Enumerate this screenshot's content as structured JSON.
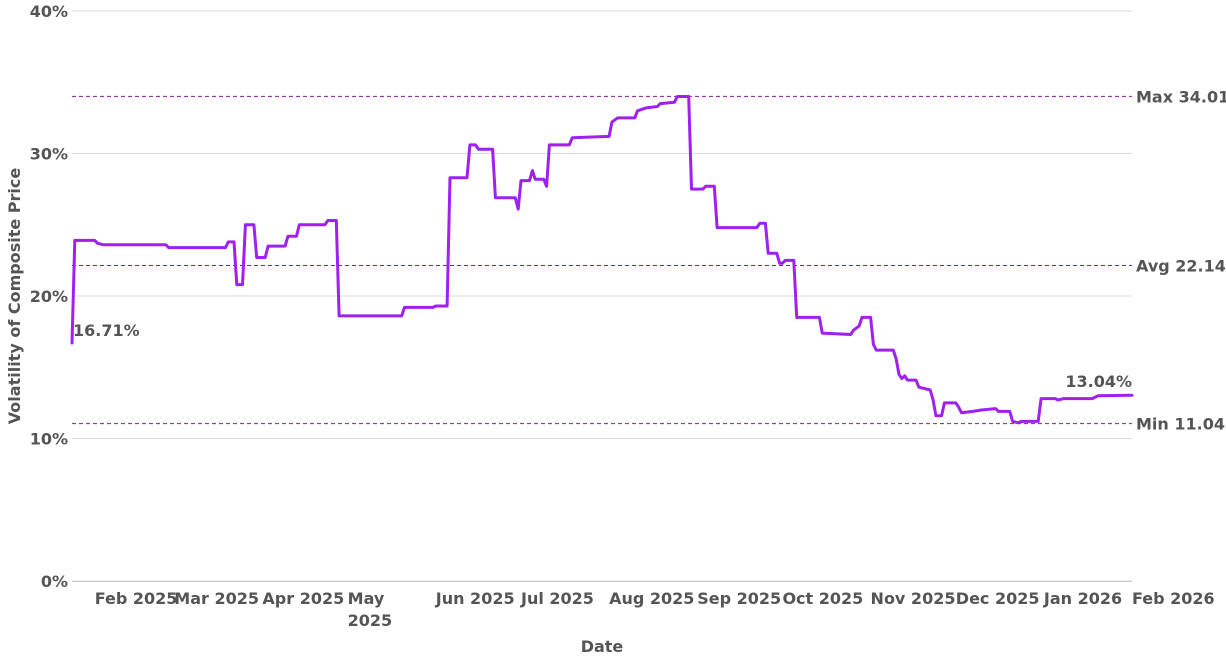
{
  "chart_data": {
    "type": "line",
    "xlabel": "Date",
    "ylabel": "Volatility of Composite Price",
    "ylim": [
      0,
      40
    ],
    "y_ticks": [
      {
        "value": 0,
        "label": "0%"
      },
      {
        "value": 10,
        "label": "10%"
      },
      {
        "value": 20,
        "label": "20%"
      },
      {
        "value": 30,
        "label": "30%"
      },
      {
        "value": 40,
        "label": "40%"
      }
    ],
    "xlim": [
      "2025-01-24",
      "2026-02-01"
    ],
    "x_ticks": [
      {
        "date": "2025-02-01",
        "lines": [
          "Feb 2025"
        ]
      },
      {
        "date": "2025-03-01",
        "lines": [
          "Mar 2025"
        ]
      },
      {
        "date": "2025-04-01",
        "lines": [
          "Apr 2025"
        ]
      },
      {
        "date": "2025-05-01",
        "lines": [
          "May",
          "2025"
        ]
      },
      {
        "date": "2025-06-01",
        "lines": [
          "Jun 2025"
        ]
      },
      {
        "date": "2025-07-01",
        "lines": [
          "Jul 2025"
        ]
      },
      {
        "date": "2025-08-01",
        "lines": [
          "Aug 2025"
        ]
      },
      {
        "date": "2025-09-01",
        "lines": [
          "Sep 2025"
        ]
      },
      {
        "date": "2025-10-01",
        "lines": [
          "Oct 2025"
        ]
      },
      {
        "date": "2025-11-01",
        "lines": [
          "Nov 2025"
        ]
      },
      {
        "date": "2025-12-01",
        "lines": [
          "Dec 2025"
        ]
      },
      {
        "date": "2026-01-01",
        "lines": [
          "Jan 2026"
        ]
      },
      {
        "date": "2026-02-01",
        "lines": [
          "Feb 2026"
        ]
      }
    ],
    "grid": true,
    "line_color": "#a020f0",
    "ref_color": "#8b1a9a",
    "reference_lines": [
      {
        "value": 34.01,
        "label": "Max 34.01"
      },
      {
        "value": 22.14,
        "label": "Avg 22.14"
      },
      {
        "value": 11.04,
        "label": "Min 11.04"
      }
    ],
    "annotations": [
      {
        "date": "2025-01-24",
        "value": 16.71,
        "label": "16.71%"
      },
      {
        "date": "2026-02-01",
        "value": 13.04,
        "label": "13.04%"
      }
    ],
    "series": [
      {
        "points": [
          [
            "2025-01-24",
            16.7
          ],
          [
            "2025-01-25",
            23.9
          ],
          [
            "2025-02-01",
            23.9
          ],
          [
            "2025-02-02",
            23.7
          ],
          [
            "2025-02-04",
            23.6
          ],
          [
            "2025-02-26",
            23.6
          ],
          [
            "2025-02-27",
            23.4
          ],
          [
            "2025-03-19",
            23.4
          ],
          [
            "2025-03-20",
            23.8
          ],
          [
            "2025-03-22",
            23.8
          ],
          [
            "2025-03-23",
            20.8
          ],
          [
            "2025-03-25",
            20.8
          ],
          [
            "2025-03-26",
            25.0
          ],
          [
            "2025-03-29",
            25.0
          ],
          [
            "2025-03-30",
            22.7
          ],
          [
            "2025-04-02",
            22.7
          ],
          [
            "2025-04-03",
            23.5
          ],
          [
            "2025-04-09",
            23.5
          ],
          [
            "2025-04-10",
            24.2
          ],
          [
            "2025-04-13",
            24.2
          ],
          [
            "2025-04-14",
            25.0
          ],
          [
            "2025-04-23",
            25.0
          ],
          [
            "2025-04-24",
            25.3
          ],
          [
            "2025-04-27",
            25.3
          ],
          [
            "2025-04-28",
            18.6
          ],
          [
            "2025-05-20",
            18.6
          ],
          [
            "2025-05-21",
            19.2
          ],
          [
            "2025-05-31",
            19.2
          ],
          [
            "2025-06-01",
            19.3
          ],
          [
            "2025-06-05",
            19.3
          ],
          [
            "2025-06-06",
            28.3
          ],
          [
            "2025-06-12",
            28.3
          ],
          [
            "2025-06-13",
            30.6
          ],
          [
            "2025-06-15",
            30.6
          ],
          [
            "2025-06-16",
            30.3
          ],
          [
            "2025-06-21",
            30.3
          ],
          [
            "2025-06-22",
            26.9
          ],
          [
            "2025-06-29",
            26.9
          ],
          [
            "2025-06-30",
            26.1
          ],
          [
            "2025-07-01",
            28.1
          ],
          [
            "2025-07-04",
            28.1
          ],
          [
            "2025-07-05",
            28.8
          ],
          [
            "2025-07-06",
            28.2
          ],
          [
            "2025-07-09",
            28.2
          ],
          [
            "2025-07-10",
            27.7
          ],
          [
            "2025-07-11",
            30.6
          ],
          [
            "2025-07-18",
            30.6
          ],
          [
            "2025-07-19",
            31.1
          ],
          [
            "2025-08-01",
            31.2
          ],
          [
            "2025-08-02",
            32.2
          ],
          [
            "2025-08-04",
            32.5
          ],
          [
            "2025-08-10",
            32.5
          ],
          [
            "2025-08-11",
            33.0
          ],
          [
            "2025-08-14",
            33.2
          ],
          [
            "2025-08-18",
            33.3
          ],
          [
            "2025-08-19",
            33.5
          ],
          [
            "2025-08-24",
            33.6
          ],
          [
            "2025-08-25",
            34.0
          ],
          [
            "2025-08-29",
            34.0
          ],
          [
            "2025-08-30",
            27.5
          ],
          [
            "2025-09-03",
            27.5
          ],
          [
            "2025-09-04",
            27.7
          ],
          [
            "2025-09-07",
            27.7
          ],
          [
            "2025-09-08",
            24.8
          ],
          [
            "2025-09-22",
            24.8
          ],
          [
            "2025-09-23",
            25.1
          ],
          [
            "2025-09-25",
            25.1
          ],
          [
            "2025-09-26",
            23.0
          ],
          [
            "2025-09-29",
            23.0
          ],
          [
            "2025-09-30",
            22.3
          ],
          [
            "2025-10-01",
            22.3
          ],
          [
            "2025-10-02",
            22.5
          ],
          [
            "2025-10-05",
            22.5
          ],
          [
            "2025-10-06",
            18.5
          ],
          [
            "2025-10-14",
            18.5
          ],
          [
            "2025-10-15",
            17.4
          ],
          [
            "2025-10-25",
            17.3
          ],
          [
            "2025-10-26",
            17.6
          ],
          [
            "2025-10-28",
            17.9
          ],
          [
            "2025-10-29",
            18.5
          ],
          [
            "2025-11-01",
            18.5
          ],
          [
            "2025-11-02",
            16.6
          ],
          [
            "2025-11-03",
            16.2
          ],
          [
            "2025-11-09",
            16.2
          ],
          [
            "2025-11-10",
            15.6
          ],
          [
            "2025-11-11",
            14.5
          ],
          [
            "2025-11-12",
            14.2
          ],
          [
            "2025-11-13",
            14.4
          ],
          [
            "2025-11-14",
            14.1
          ],
          [
            "2025-11-17",
            14.1
          ],
          [
            "2025-11-18",
            13.6
          ],
          [
            "2025-11-22",
            13.4
          ],
          [
            "2025-11-23",
            12.7
          ],
          [
            "2025-11-24",
            11.6
          ],
          [
            "2025-11-26",
            11.6
          ],
          [
            "2025-11-27",
            12.5
          ],
          [
            "2025-12-01",
            12.5
          ],
          [
            "2025-12-02",
            12.2
          ],
          [
            "2025-12-03",
            11.8
          ],
          [
            "2025-12-07",
            11.9
          ],
          [
            "2025-12-10",
            12.0
          ],
          [
            "2025-12-15",
            12.1
          ],
          [
            "2025-12-16",
            11.9
          ],
          [
            "2025-12-20",
            11.9
          ],
          [
            "2025-12-21",
            11.2
          ],
          [
            "2025-12-23",
            11.1
          ],
          [
            "2025-12-24",
            11.2
          ],
          [
            "2025-12-30",
            11.2
          ],
          [
            "2025-12-31",
            12.8
          ],
          [
            "2026-01-05",
            12.8
          ],
          [
            "2026-01-06",
            12.7
          ],
          [
            "2026-01-08",
            12.8
          ],
          [
            "2026-01-18",
            12.8
          ],
          [
            "2026-01-20",
            13.0
          ],
          [
            "2026-02-01",
            13.04
          ]
        ]
      }
    ]
  }
}
